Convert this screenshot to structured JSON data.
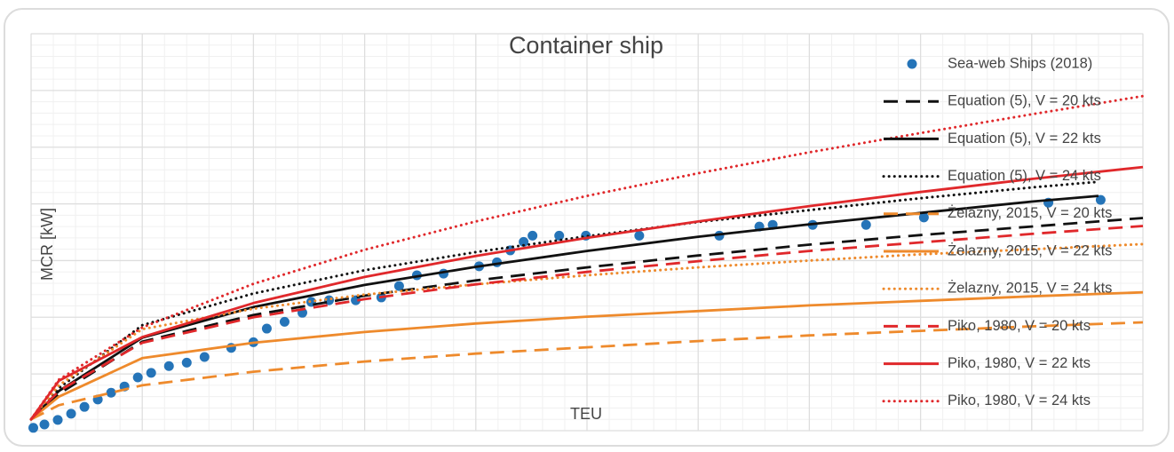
{
  "chart_data": {
    "type": "line",
    "title": "Container ship",
    "xlabel": "TEU",
    "ylabel": "MCR [kW]",
    "xlim": [
      0,
      10
    ],
    "ylim": [
      0,
      7
    ],
    "xticks": [
      0,
      1,
      2,
      3,
      4,
      5,
      6,
      7,
      8,
      9,
      10
    ],
    "yticks": [
      0,
      1,
      2,
      3,
      4,
      5,
      6,
      7
    ],
    "grid": true,
    "legend": "right",
    "series": [
      {
        "name": "Sea-web Ships (2018)",
        "type": "scatter",
        "color": "#2574b8",
        "x": [
          0.02,
          0.12,
          0.24,
          0.36,
          0.48,
          0.6,
          0.72,
          0.84,
          0.96,
          1.08,
          1.24,
          1.4,
          1.56,
          1.8,
          2.0,
          2.12,
          2.28,
          2.44,
          2.52,
          2.68,
          2.92,
          3.15,
          3.31,
          3.47,
          3.71,
          4.03,
          4.19,
          4.31,
          4.43,
          4.51,
          4.75,
          4.99,
          5.47,
          6.19,
          6.55,
          6.67,
          7.03,
          7.51,
          8.03,
          9.15,
          9.62
        ],
        "values": [
          0.05,
          0.11,
          0.19,
          0.3,
          0.42,
          0.55,
          0.67,
          0.78,
          0.94,
          1.02,
          1.14,
          1.2,
          1.3,
          1.46,
          1.56,
          1.8,
          1.92,
          2.08,
          2.27,
          2.3,
          2.3,
          2.35,
          2.55,
          2.74,
          2.77,
          2.9,
          2.97,
          3.18,
          3.33,
          3.44,
          3.44,
          3.44,
          3.44,
          3.44,
          3.6,
          3.63,
          3.63,
          3.63,
          3.76,
          4.02,
          4.07
        ]
      },
      {
        "name": "Equation (5), V = 20 kts",
        "type": "line",
        "style": "dashed",
        "color": "#111111",
        "x": [
          0,
          0.25,
          1,
          2,
          3,
          4,
          5,
          6,
          7,
          8,
          9,
          10
        ],
        "values": [
          0.2,
          0.65,
          1.57,
          2.04,
          2.38,
          2.65,
          2.88,
          3.09,
          3.28,
          3.45,
          3.6,
          3.75
        ]
      },
      {
        "name": "Equation (5), V = 22 kts",
        "type": "line",
        "style": "solid",
        "color": "#111111",
        "x": [
          0,
          0.25,
          1,
          2,
          3,
          4,
          5,
          6,
          7,
          8,
          9,
          9.6
        ],
        "values": [
          0.2,
          0.7,
          1.64,
          2.18,
          2.57,
          2.89,
          3.17,
          3.42,
          3.64,
          3.84,
          4.04,
          4.14
        ]
      },
      {
        "name": "Equation (5), V = 24 kts",
        "type": "line",
        "style": "dotted",
        "color": "#111111",
        "x": [
          0,
          0.25,
          1,
          2,
          3,
          4,
          5,
          6,
          7,
          8,
          9,
          9.6
        ],
        "values": [
          0.2,
          0.75,
          1.86,
          2.42,
          2.83,
          3.15,
          3.43,
          3.68,
          3.89,
          4.1,
          4.29,
          4.39
        ]
      },
      {
        "name": "Żelazny, 2015, V = 20 kts",
        "type": "line",
        "style": "dashed",
        "color": "#ee8a2c",
        "x": [
          0,
          0.25,
          1,
          2,
          3,
          4,
          5,
          6,
          7,
          8,
          9,
          10
        ],
        "values": [
          0.2,
          0.45,
          0.8,
          1.04,
          1.22,
          1.36,
          1.47,
          1.58,
          1.68,
          1.76,
          1.84,
          1.91
        ]
      },
      {
        "name": "Żelazny, 2015, V = 22 kts",
        "type": "line",
        "style": "solid",
        "color": "#ee8a2c",
        "x": [
          0,
          0.25,
          1,
          2,
          3,
          4,
          5,
          6,
          7,
          8,
          9,
          10
        ],
        "values": [
          0.2,
          0.6,
          1.28,
          1.55,
          1.74,
          1.89,
          2.01,
          2.11,
          2.21,
          2.29,
          2.37,
          2.44
        ]
      },
      {
        "name": "Żelazny, 2015, V = 24 kts",
        "type": "line",
        "style": "dotted",
        "color": "#ee8a2c",
        "x": [
          0,
          0.25,
          1,
          2,
          3,
          4,
          5,
          6,
          7,
          8,
          9,
          10
        ],
        "values": [
          0.2,
          0.8,
          1.79,
          2.15,
          2.4,
          2.58,
          2.74,
          2.88,
          3.0,
          3.11,
          3.2,
          3.29
        ]
      },
      {
        "name": "Piko, 1980, V = 20 kts",
        "type": "line",
        "style": "dashed",
        "color": "#e0282b",
        "x": [
          0,
          0.25,
          1,
          2,
          3,
          4,
          5,
          6,
          7,
          8,
          9,
          10
        ],
        "values": [
          0.2,
          0.7,
          1.55,
          2.0,
          2.32,
          2.58,
          2.8,
          2.99,
          3.17,
          3.32,
          3.47,
          3.61
        ]
      },
      {
        "name": "Piko, 1980, V = 22 kts",
        "type": "line",
        "style": "solid",
        "color": "#e0282b",
        "x": [
          0,
          0.25,
          1,
          2,
          3,
          4,
          5,
          6,
          7,
          8,
          9,
          10
        ],
        "values": [
          0.2,
          0.88,
          1.65,
          2.25,
          2.71,
          3.08,
          3.4,
          3.69,
          3.96,
          4.21,
          4.44,
          4.65
        ]
      },
      {
        "name": "Piko, 1980, V = 24 kts",
        "type": "line",
        "style": "dotted",
        "color": "#e0282b",
        "x": [
          0,
          0.25,
          1,
          2,
          3,
          4,
          5,
          6,
          7,
          8,
          9,
          10
        ],
        "values": [
          0.2,
          0.9,
          1.82,
          2.59,
          3.19,
          3.69,
          4.14,
          4.54,
          4.91,
          5.25,
          5.58,
          5.9
        ]
      }
    ]
  }
}
